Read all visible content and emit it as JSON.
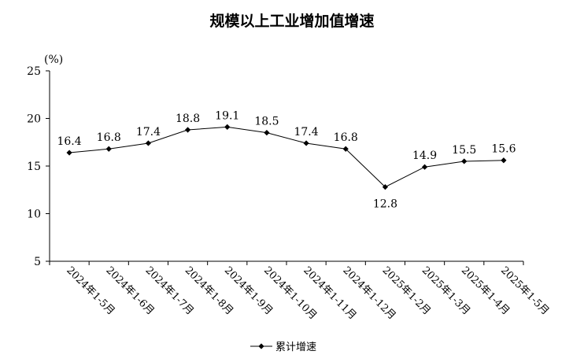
{
  "chart_data": {
    "type": "line",
    "title": "规模以上工业增加值增速",
    "unit_label": "(%)",
    "ylim": [
      5,
      25
    ],
    "yticks": [
      5,
      10,
      15,
      20,
      25
    ],
    "categories": [
      "2024年1-5月",
      "2024年1-6月",
      "2024年1-7月",
      "2024年1-8月",
      "2024年1-9月",
      "2024年1-10月",
      "2024年1-11月",
      "2024年1-12月",
      "2025年1-2月",
      "2025年1-3月",
      "2025年1-4月",
      "2025年1-5月"
    ],
    "series": [
      {
        "name": "累计增速",
        "values": [
          16.4,
          16.8,
          17.4,
          18.8,
          19.1,
          18.5,
          17.4,
          16.8,
          12.8,
          14.9,
          15.5,
          15.6
        ],
        "value_labels": [
          "16.4",
          "16.8",
          "17.4",
          "18.8",
          "19.1",
          "18.5",
          "17.4",
          "16.8",
          "12.8",
          "14.9",
          "15.5",
          "15.6"
        ],
        "label_position": [
          "above",
          "above",
          "above",
          "above",
          "above",
          "above",
          "above",
          "above",
          "below",
          "above",
          "above",
          "above"
        ],
        "color": "#000000",
        "marker": "diamond"
      }
    ],
    "grid": false,
    "legend_position": "bottom-center"
  }
}
